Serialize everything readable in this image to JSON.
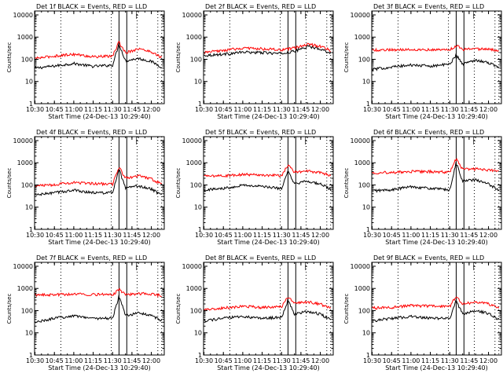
{
  "colors": {
    "events": "#000000",
    "lld": "#ff0000",
    "axis": "#000000"
  },
  "common": {
    "xlabel": "Start Time (24-Dec-13 10:29:40)",
    "ylabel": "Counts/sec",
    "x_tick_labels": [
      "10:30",
      "10:45",
      "11:00",
      "11:15",
      "11:30",
      "11:45",
      "12:00"
    ],
    "y_tick_labels": [
      "1",
      "10",
      "100",
      "1000",
      "10000"
    ],
    "yscale": "log",
    "ylim": [
      1,
      15000
    ],
    "xlim": [
      "10:29:40",
      "12:10:00"
    ],
    "dotted_vlines": [
      "10:50",
      "11:29",
      "11:49",
      "12:05",
      "12:08"
    ],
    "solid_vlines": [
      "11:35",
      "11:41"
    ],
    "legend_glyph": "├"
  },
  "chart_data": [
    {
      "type": "line",
      "title": "Det 1f BLACK = Events, RED = LLD",
      "series": [
        {
          "name": "Events",
          "values": [
            {
              "x": "10:30",
              "y": 40
            },
            {
              "x": "10:45",
              "y": 50
            },
            {
              "x": "11:00",
              "y": 65
            },
            {
              "x": "11:15",
              "y": 48
            },
            {
              "x": "11:30",
              "y": 55
            },
            {
              "x": "11:35",
              "y": 500
            },
            {
              "x": "11:40",
              "y": 85
            },
            {
              "x": "11:50",
              "y": 110
            },
            {
              "x": "12:00",
              "y": 80
            },
            {
              "x": "12:08",
              "y": 45
            }
          ]
        },
        {
          "name": "LLD",
          "values": [
            {
              "x": "10:30",
              "y": 110
            },
            {
              "x": "10:45",
              "y": 140
            },
            {
              "x": "11:00",
              "y": 170
            },
            {
              "x": "11:15",
              "y": 130
            },
            {
              "x": "11:30",
              "y": 140
            },
            {
              "x": "11:35",
              "y": 600
            },
            {
              "x": "11:40",
              "y": 200
            },
            {
              "x": "11:50",
              "y": 300
            },
            {
              "x": "12:00",
              "y": 220
            },
            {
              "x": "12:08",
              "y": 120
            }
          ]
        }
      ]
    },
    {
      "type": "line",
      "title": "Det 2f BLACK = Events, RED = LLD",
      "series": [
        {
          "name": "Events",
          "values": [
            {
              "x": "10:30",
              "y": 150
            },
            {
              "x": "10:45",
              "y": 170
            },
            {
              "x": "11:00",
              "y": 210
            },
            {
              "x": "11:15",
              "y": 200
            },
            {
              "x": "11:30",
              "y": 180
            },
            {
              "x": "11:40",
              "y": 230
            },
            {
              "x": "11:50",
              "y": 380
            },
            {
              "x": "12:00",
              "y": 300
            },
            {
              "x": "12:08",
              "y": 190
            }
          ]
        },
        {
          "name": "LLD",
          "values": [
            {
              "x": "10:30",
              "y": 200
            },
            {
              "x": "10:45",
              "y": 250
            },
            {
              "x": "11:00",
              "y": 320
            },
            {
              "x": "11:15",
              "y": 300
            },
            {
              "x": "11:30",
              "y": 260
            },
            {
              "x": "11:40",
              "y": 320
            },
            {
              "x": "11:50",
              "y": 480
            },
            {
              "x": "12:00",
              "y": 390
            },
            {
              "x": "12:08",
              "y": 250
            }
          ]
        }
      ]
    },
    {
      "type": "line",
      "title": "Det 3f BLACK = Events, RED = LLD",
      "series": [
        {
          "name": "Events",
          "values": [
            {
              "x": "10:30",
              "y": 35
            },
            {
              "x": "10:45",
              "y": 45
            },
            {
              "x": "11:00",
              "y": 55
            },
            {
              "x": "11:15",
              "y": 50
            },
            {
              "x": "11:30",
              "y": 60
            },
            {
              "x": "11:35",
              "y": 160
            },
            {
              "x": "11:40",
              "y": 60
            },
            {
              "x": "11:50",
              "y": 95
            },
            {
              "x": "12:00",
              "y": 70
            },
            {
              "x": "12:08",
              "y": 45
            }
          ]
        },
        {
          "name": "LLD",
          "values": [
            {
              "x": "10:30",
              "y": 260
            },
            {
              "x": "10:45",
              "y": 270
            },
            {
              "x": "11:00",
              "y": 280
            },
            {
              "x": "11:15",
              "y": 270
            },
            {
              "x": "11:30",
              "y": 270
            },
            {
              "x": "11:35",
              "y": 420
            },
            {
              "x": "11:40",
              "y": 280
            },
            {
              "x": "11:50",
              "y": 300
            },
            {
              "x": "12:00",
              "y": 280
            },
            {
              "x": "12:08",
              "y": 250
            }
          ]
        }
      ]
    },
    {
      "type": "line",
      "title": "Det 4f BLACK = Events, RED = LLD",
      "series": [
        {
          "name": "Events",
          "values": [
            {
              "x": "10:30",
              "y": 35
            },
            {
              "x": "10:45",
              "y": 45
            },
            {
              "x": "11:00",
              "y": 58
            },
            {
              "x": "11:15",
              "y": 45
            },
            {
              "x": "11:30",
              "y": 45
            },
            {
              "x": "11:35",
              "y": 520
            },
            {
              "x": "11:40",
              "y": 70
            },
            {
              "x": "11:50",
              "y": 90
            },
            {
              "x": "12:00",
              "y": 65
            },
            {
              "x": "12:08",
              "y": 35
            }
          ]
        },
        {
          "name": "LLD",
          "values": [
            {
              "x": "10:30",
              "y": 90
            },
            {
              "x": "10:45",
              "y": 105
            },
            {
              "x": "11:00",
              "y": 130
            },
            {
              "x": "11:15",
              "y": 115
            },
            {
              "x": "11:30",
              "y": 110
            },
            {
              "x": "11:35",
              "y": 650
            },
            {
              "x": "11:40",
              "y": 200
            },
            {
              "x": "11:50",
              "y": 270
            },
            {
              "x": "12:00",
              "y": 190
            },
            {
              "x": "12:08",
              "y": 110
            }
          ]
        }
      ]
    },
    {
      "type": "line",
      "title": "Det 5f BLACK = Events, RED = LLD",
      "series": [
        {
          "name": "Events",
          "values": [
            {
              "x": "10:30",
              "y": 60
            },
            {
              "x": "10:45",
              "y": 70
            },
            {
              "x": "11:00",
              "y": 100
            },
            {
              "x": "11:15",
              "y": 85
            },
            {
              "x": "11:30",
              "y": 70
            },
            {
              "x": "11:35",
              "y": 400
            },
            {
              "x": "11:40",
              "y": 110
            },
            {
              "x": "11:50",
              "y": 150
            },
            {
              "x": "12:00",
              "y": 110
            },
            {
              "x": "12:08",
              "y": 65
            }
          ]
        },
        {
          "name": "LLD",
          "values": [
            {
              "x": "10:30",
              "y": 250
            },
            {
              "x": "10:45",
              "y": 260
            },
            {
              "x": "11:00",
              "y": 300
            },
            {
              "x": "11:15",
              "y": 290
            },
            {
              "x": "11:30",
              "y": 260
            },
            {
              "x": "11:35",
              "y": 800
            },
            {
              "x": "11:40",
              "y": 380
            },
            {
              "x": "11:50",
              "y": 420
            },
            {
              "x": "12:00",
              "y": 360
            },
            {
              "x": "12:08",
              "y": 270
            }
          ]
        }
      ]
    },
    {
      "type": "line",
      "title": "Det 6f BLACK = Events, RED = LLD",
      "series": [
        {
          "name": "Events",
          "values": [
            {
              "x": "10:30",
              "y": 55
            },
            {
              "x": "10:45",
              "y": 60
            },
            {
              "x": "11:00",
              "y": 85
            },
            {
              "x": "11:15",
              "y": 70
            },
            {
              "x": "11:30",
              "y": 60
            },
            {
              "x": "11:35",
              "y": 1000
            },
            {
              "x": "11:40",
              "y": 150
            },
            {
              "x": "11:50",
              "y": 170
            },
            {
              "x": "12:00",
              "y": 110
            },
            {
              "x": "12:08",
              "y": 60
            }
          ]
        },
        {
          "name": "LLD",
          "values": [
            {
              "x": "10:30",
              "y": 360
            },
            {
              "x": "10:45",
              "y": 370
            },
            {
              "x": "11:00",
              "y": 400
            },
            {
              "x": "11:15",
              "y": 400
            },
            {
              "x": "11:30",
              "y": 380
            },
            {
              "x": "11:35",
              "y": 1500
            },
            {
              "x": "11:40",
              "y": 500
            },
            {
              "x": "11:50",
              "y": 520
            },
            {
              "x": "12:00",
              "y": 480
            },
            {
              "x": "12:08",
              "y": 400
            }
          ]
        }
      ]
    },
    {
      "type": "line",
      "title": "Det 7f BLACK = Events, RED = LLD",
      "series": [
        {
          "name": "Events",
          "values": [
            {
              "x": "10:30",
              "y": 30
            },
            {
              "x": "10:45",
              "y": 45
            },
            {
              "x": "11:00",
              "y": 60
            },
            {
              "x": "11:15",
              "y": 45
            },
            {
              "x": "11:30",
              "y": 45
            },
            {
              "x": "11:35",
              "y": 450
            },
            {
              "x": "11:40",
              "y": 60
            },
            {
              "x": "11:50",
              "y": 80
            },
            {
              "x": "12:00",
              "y": 60
            },
            {
              "x": "12:08",
              "y": 35
            }
          ]
        },
        {
          "name": "LLD",
          "values": [
            {
              "x": "10:30",
              "y": 500
            },
            {
              "x": "10:45",
              "y": 520
            },
            {
              "x": "11:00",
              "y": 560
            },
            {
              "x": "11:15",
              "y": 540
            },
            {
              "x": "11:30",
              "y": 520
            },
            {
              "x": "11:35",
              "y": 900
            },
            {
              "x": "11:40",
              "y": 520
            },
            {
              "x": "11:50",
              "y": 600
            },
            {
              "x": "12:00",
              "y": 560
            },
            {
              "x": "12:08",
              "y": 480
            }
          ]
        }
      ]
    },
    {
      "type": "line",
      "title": "Det 8f BLACK = Events, RED = LLD",
      "series": [
        {
          "name": "Events",
          "values": [
            {
              "x": "10:30",
              "y": 35
            },
            {
              "x": "10:45",
              "y": 45
            },
            {
              "x": "11:00",
              "y": 55
            },
            {
              "x": "11:15",
              "y": 45
            },
            {
              "x": "11:30",
              "y": 50
            },
            {
              "x": "11:35",
              "y": 300
            },
            {
              "x": "11:40",
              "y": 70
            },
            {
              "x": "11:50",
              "y": 95
            },
            {
              "x": "12:00",
              "y": 70
            },
            {
              "x": "12:08",
              "y": 40
            }
          ]
        },
        {
          "name": "LLD",
          "values": [
            {
              "x": "10:30",
              "y": 110
            },
            {
              "x": "10:45",
              "y": 130
            },
            {
              "x": "11:00",
              "y": 160
            },
            {
              "x": "11:15",
              "y": 140
            },
            {
              "x": "11:30",
              "y": 150
            },
            {
              "x": "11:35",
              "y": 420
            },
            {
              "x": "11:40",
              "y": 210
            },
            {
              "x": "11:50",
              "y": 250
            },
            {
              "x": "12:00",
              "y": 200
            },
            {
              "x": "12:08",
              "y": 130
            }
          ]
        }
      ]
    },
    {
      "type": "line",
      "title": "Det 9f BLACK = Events, RED = LLD",
      "series": [
        {
          "name": "Events",
          "values": [
            {
              "x": "10:30",
              "y": 35
            },
            {
              "x": "10:45",
              "y": 45
            },
            {
              "x": "11:00",
              "y": 55
            },
            {
              "x": "11:15",
              "y": 45
            },
            {
              "x": "11:30",
              "y": 45
            },
            {
              "x": "11:35",
              "y": 280
            },
            {
              "x": "11:40",
              "y": 70
            },
            {
              "x": "11:50",
              "y": 100
            },
            {
              "x": "12:00",
              "y": 75
            },
            {
              "x": "12:08",
              "y": 40
            }
          ]
        },
        {
          "name": "LLD",
          "values": [
            {
              "x": "10:30",
              "y": 130
            },
            {
              "x": "10:45",
              "y": 140
            },
            {
              "x": "11:00",
              "y": 170
            },
            {
              "x": "11:15",
              "y": 160
            },
            {
              "x": "11:30",
              "y": 150
            },
            {
              "x": "11:35",
              "y": 450
            },
            {
              "x": "11:40",
              "y": 200
            },
            {
              "x": "11:50",
              "y": 250
            },
            {
              "x": "12:00",
              "y": 200
            },
            {
              "x": "12:08",
              "y": 140
            }
          ]
        }
      ]
    }
  ]
}
